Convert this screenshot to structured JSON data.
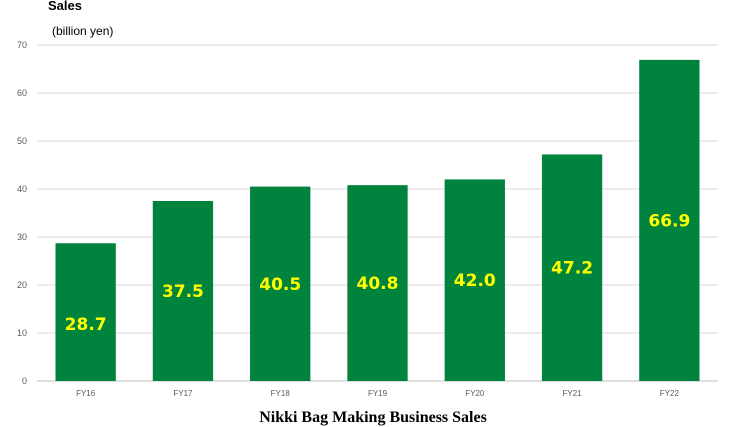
{
  "chart_data": {
    "type": "bar",
    "title": "Sales",
    "ylabel": "(billion yen)",
    "categories": [
      "FY16",
      "FY17",
      "FY18",
      "FY19",
      "FY20",
      "FY21",
      "FY22"
    ],
    "values": [
      28.7,
      37.5,
      40.5,
      40.8,
      42.0,
      47.2,
      66.9
    ],
    "data_labels": [
      "28.7",
      "37.5",
      "40.5",
      "40.8",
      "42.0",
      "47.2",
      "66.9"
    ],
    "ylim": [
      0,
      70
    ],
    "yticks": [
      0,
      10,
      20,
      30,
      40,
      50,
      60,
      70
    ],
    "grid": true,
    "legend": "none",
    "colors": {
      "bar": "#00843d",
      "label": "#ffff00",
      "grid": "#d9d9d9"
    }
  },
  "caption": "Nikki Bag Making Business Sales"
}
